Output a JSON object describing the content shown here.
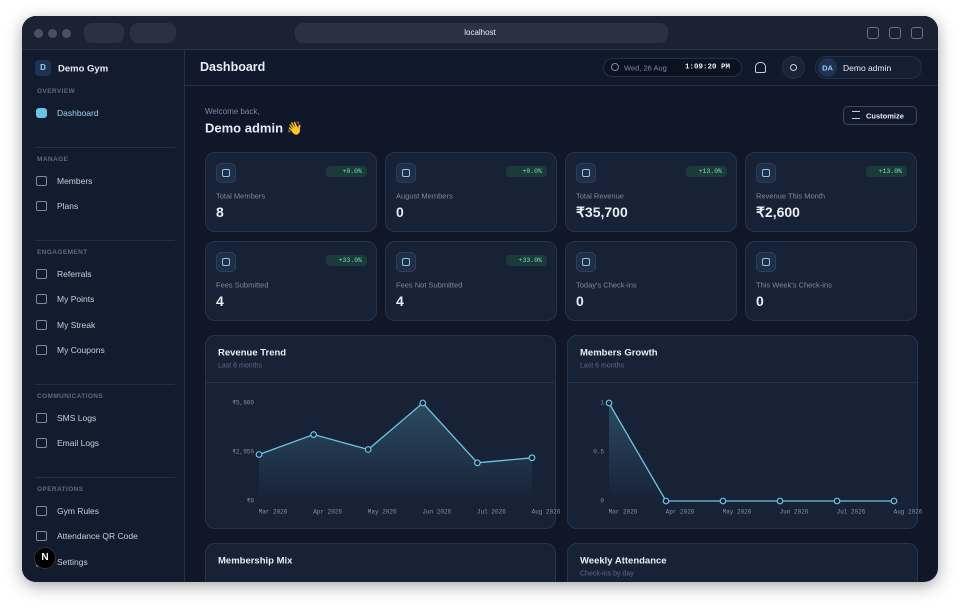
{
  "browser": {
    "url": "localhost"
  },
  "sidebar": {
    "brand_initial": "D",
    "brand": "Demo Gym",
    "sections": [
      {
        "title": "OVERVIEW",
        "items": [
          "Dashboard"
        ]
      },
      {
        "title": "MANAGE",
        "items": [
          "Members",
          "Plans"
        ]
      },
      {
        "title": "ENGAGEMENT",
        "items": [
          "Referrals",
          "My Points",
          "My Streak",
          "My Coupons"
        ]
      },
      {
        "title": "COMMUNICATIONS",
        "items": [
          "SMS Logs",
          "Email Logs"
        ]
      },
      {
        "title": "OPERATIONS",
        "items": [
          "Gym Rules",
          "Attendance QR Code",
          "Settings"
        ]
      }
    ],
    "footer_initial": "N"
  },
  "header": {
    "title": "Dashboard",
    "date": "Wed, 26 Aug",
    "time": "1:09:20 PM",
    "user_initials": "DA",
    "user": "Demo admin"
  },
  "welcome": {
    "greeting": "Welcome back,",
    "name": "Demo admin 👋",
    "button": "Customize"
  },
  "stats": [
    {
      "label": "Total Members",
      "value": "8",
      "change": "+0.0%"
    },
    {
      "label": "August Members",
      "value": "0",
      "change": "+0.0%"
    },
    {
      "label": "Total Revenue",
      "value": "₹35,700",
      "change": "+13.0%"
    },
    {
      "label": "Revenue This Month",
      "value": "₹2,600",
      "change": "+13.0%"
    },
    {
      "label": "Fees Submitted",
      "value": "4",
      "change": "+33.0%"
    },
    {
      "label": "Fees Not Submitted",
      "value": "4",
      "change": "+33.0%"
    },
    {
      "label": "Today's Check-ins",
      "value": "0"
    },
    {
      "label": "This Week's Check-ins",
      "value": "0"
    }
  ],
  "charts": [
    {
      "type": "line",
      "title": "Revenue Trend",
      "subtitle": "Last 6 months",
      "categories": [
        "Mar 2026",
        "Apr 2026",
        "May 2026",
        "Jun 2026",
        "Jul 2026",
        "Aug 2026"
      ],
      "values": [
        2800,
        4000,
        3100,
        5900,
        2300,
        2600
      ],
      "color": "#6cc4e4",
      "ylim": [
        0,
        5900
      ],
      "yticks": [
        {
          "value": 0,
          "label": "₹0"
        },
        {
          "value": 2950,
          "label": "₹2,950"
        },
        {
          "value": 5900,
          "label": "₹5,900"
        }
      ]
    },
    {
      "type": "line",
      "title": "Members Growth",
      "subtitle": "Last 6 months",
      "categories": [
        "Mar 2026",
        "Apr 2026",
        "May 2026",
        "Jun 2026",
        "Jul 2026",
        "Aug 2026"
      ],
      "values": [
        1,
        0,
        0,
        0,
        0,
        0
      ],
      "color": "#6cc4e4",
      "ylim": [
        0,
        1
      ],
      "yticks": [
        0,
        0.5,
        1
      ]
    }
  ],
  "bottom_cards": [
    {
      "title": "Membership Mix"
    },
    {
      "title": "Weekly Attendance",
      "subtitle": "Check-ins by day"
    }
  ]
}
